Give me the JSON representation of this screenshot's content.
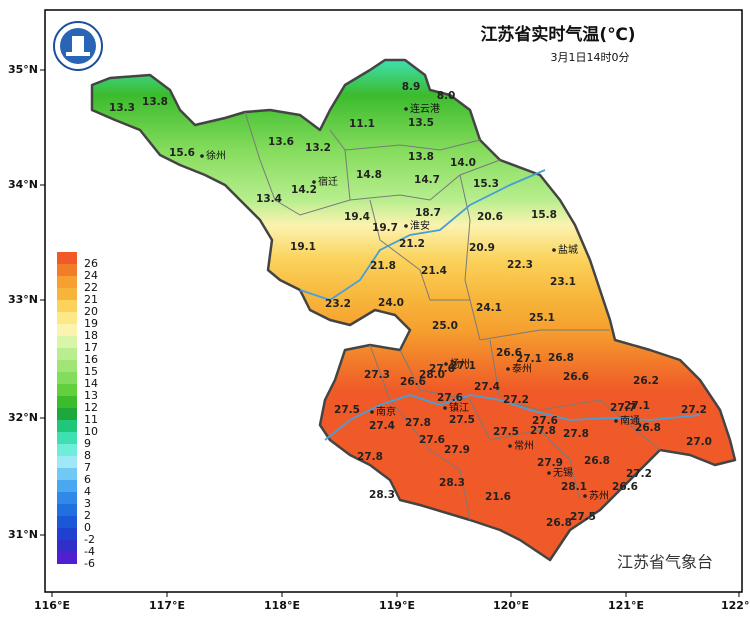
{
  "header": {
    "title": "江苏省实时气温(℃)",
    "subtitle": "3月1日14时0分"
  },
  "footer": "江苏省气象台",
  "axes": {
    "longitude": [
      "116°E",
      "117°E",
      "118°E",
      "119°E",
      "120°E",
      "121°E",
      "122°E"
    ],
    "latitude": [
      "35°N",
      "34°N",
      "33°N",
      "32°N",
      "31°N"
    ]
  },
  "legend": [
    {
      "label": 26,
      "color": "#f05a28"
    },
    {
      "label": 24,
      "color": "#f27c2a"
    },
    {
      "label": 22,
      "color": "#f5a02f"
    },
    {
      "label": 21,
      "color": "#f7b43a"
    },
    {
      "label": 20,
      "color": "#fbd25a"
    },
    {
      "label": 19,
      "color": "#fde888"
    },
    {
      "label": 18,
      "color": "#fbf3b0"
    },
    {
      "label": 17,
      "color": "#d9f5a8"
    },
    {
      "label": 16,
      "color": "#b8ee8e"
    },
    {
      "label": 15,
      "color": "#a0e576"
    },
    {
      "label": 14,
      "color": "#84dc5c"
    },
    {
      "label": 13,
      "color": "#62cf3c"
    },
    {
      "label": 12,
      "color": "#3cbb2d"
    },
    {
      "label": 11,
      "color": "#1ea83c"
    },
    {
      "label": 10,
      "color": "#20c77a"
    },
    {
      "label": 9,
      "color": "#3ee0b0"
    },
    {
      "label": 8,
      "color": "#6eeed8"
    },
    {
      "label": 7,
      "color": "#a0e8f8"
    },
    {
      "label": 6,
      "color": "#70c8f5"
    },
    {
      "label": 4,
      "color": "#4aa8f0"
    },
    {
      "label": 3,
      "color": "#3088e8"
    },
    {
      "label": 2,
      "color": "#2070e0"
    },
    {
      "label": 0,
      "color": "#1a58d8"
    },
    {
      "label": -2,
      "color": "#2040d0"
    },
    {
      "label": -4,
      "color": "#3030c8"
    },
    {
      "label": -6,
      "color": "#5020d0"
    }
  ],
  "stations": [
    "13.3",
    "13.8",
    "15.6",
    "13.6",
    "13.2",
    "14.2",
    "13.4",
    "14.8",
    "11.1",
    "8.9",
    "8.0",
    "13.5",
    "13.8",
    "14.0",
    "14.7",
    "15.3",
    "15.8",
    "19.4",
    "18.7",
    "19.7",
    "20.6",
    "21.2",
    "19.1",
    "20.9",
    "21.8",
    "21.4",
    "22.3",
    "23.1",
    "23.2",
    "24.0",
    "24.1",
    "25.1",
    "25.0",
    "26.6",
    "27.1",
    "26.8",
    "27.1",
    "27.6",
    "28.0",
    "27.3",
    "26.6",
    "26.6",
    "26.2",
    "27.4",
    "27.6",
    "27.2",
    "27.5",
    "27.4",
    "27.8",
    "27.5",
    "27.1",
    "27.7",
    "27.2",
    "27.6",
    "27.6",
    "27.5",
    "27.8",
    "27.8",
    "26.8",
    "27.9",
    "27.0",
    "27.8",
    "27.9",
    "26.8",
    "27.2",
    "28.1",
    "26.6",
    "28.3",
    "28.3",
    "21.6",
    "27.5",
    "26.8"
  ],
  "cities": [
    "徐州",
    "连云港",
    "宿迁",
    "淮安",
    "盐城",
    "扬州",
    "泰州",
    "南京",
    "镇江",
    "常州",
    "南通",
    "无锡",
    "苏州"
  ]
}
